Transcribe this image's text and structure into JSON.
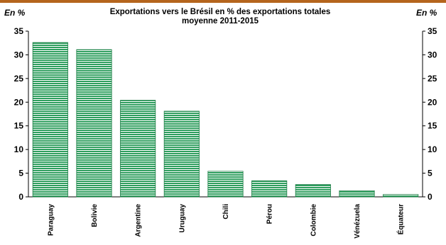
{
  "chart_data": {
    "type": "bar",
    "title": "Exportations vers le Brésil en % des exportations totales",
    "subtitle": "moyenne 2011-2015",
    "ylabel_left": "En %",
    "ylabel_right": "En %",
    "categories": [
      "Paraguay",
      "Bolivie",
      "Argentine",
      "Uruguay",
      "Chili",
      "Pérou",
      "Colombie",
      "Vénézuela",
      "Équateur"
    ],
    "values": [
      32.6,
      31.1,
      20.4,
      18.1,
      5.4,
      3.4,
      2.6,
      1.3,
      0.5
    ],
    "ylim": [
      0,
      35
    ],
    "yticks": [
      0,
      5,
      10,
      15,
      20,
      25,
      30,
      35
    ],
    "grid": false,
    "colors": {
      "bar_fill": "#2e9e5e",
      "bar_stripe": "#ffffff",
      "bar_edge": "#1b7a43",
      "top_bar": "#b5651d"
    }
  }
}
